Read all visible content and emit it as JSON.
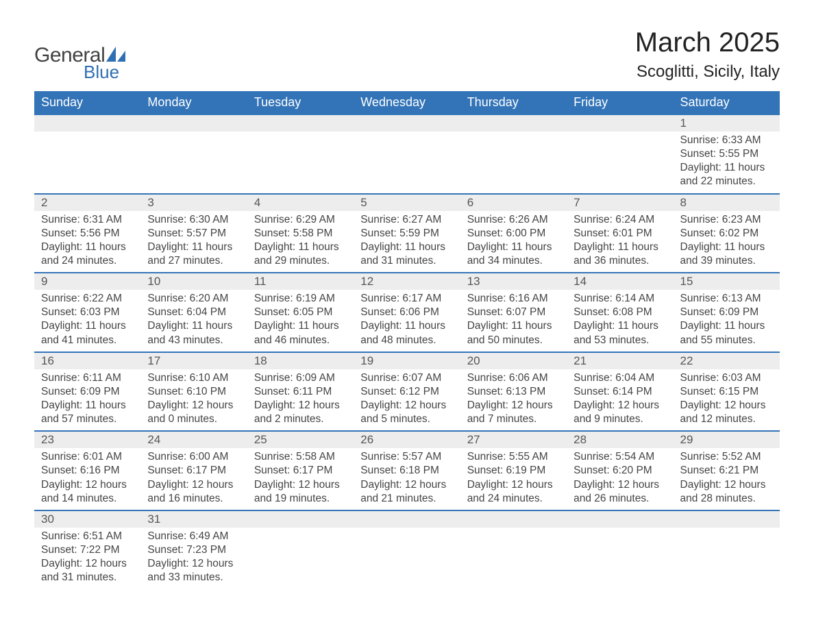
{
  "logo": {
    "word1": "General",
    "word2": "Blue",
    "shape_color": "#2f6fb3",
    "text_color_dark": "#424242"
  },
  "title": "March 2025",
  "location": "Scoglitti, Sicily, Italy",
  "weekdays": [
    "Sunday",
    "Monday",
    "Tuesday",
    "Wednesday",
    "Thursday",
    "Friday",
    "Saturday"
  ],
  "colors": {
    "header_bg": "#3374b8",
    "header_text": "#ffffff",
    "daynum_bg": "#ededed",
    "row_border": "#3374b8",
    "body_text": "#444444"
  },
  "first_weekday_index": 6,
  "days": [
    {
      "n": 1,
      "sunrise": "6:33 AM",
      "sunset": "5:55 PM",
      "daylight": "11 hours and 22 minutes."
    },
    {
      "n": 2,
      "sunrise": "6:31 AM",
      "sunset": "5:56 PM",
      "daylight": "11 hours and 24 minutes."
    },
    {
      "n": 3,
      "sunrise": "6:30 AM",
      "sunset": "5:57 PM",
      "daylight": "11 hours and 27 minutes."
    },
    {
      "n": 4,
      "sunrise": "6:29 AM",
      "sunset": "5:58 PM",
      "daylight": "11 hours and 29 minutes."
    },
    {
      "n": 5,
      "sunrise": "6:27 AM",
      "sunset": "5:59 PM",
      "daylight": "11 hours and 31 minutes."
    },
    {
      "n": 6,
      "sunrise": "6:26 AM",
      "sunset": "6:00 PM",
      "daylight": "11 hours and 34 minutes."
    },
    {
      "n": 7,
      "sunrise": "6:24 AM",
      "sunset": "6:01 PM",
      "daylight": "11 hours and 36 minutes."
    },
    {
      "n": 8,
      "sunrise": "6:23 AM",
      "sunset": "6:02 PM",
      "daylight": "11 hours and 39 minutes."
    },
    {
      "n": 9,
      "sunrise": "6:22 AM",
      "sunset": "6:03 PM",
      "daylight": "11 hours and 41 minutes."
    },
    {
      "n": 10,
      "sunrise": "6:20 AM",
      "sunset": "6:04 PM",
      "daylight": "11 hours and 43 minutes."
    },
    {
      "n": 11,
      "sunrise": "6:19 AM",
      "sunset": "6:05 PM",
      "daylight": "11 hours and 46 minutes."
    },
    {
      "n": 12,
      "sunrise": "6:17 AM",
      "sunset": "6:06 PM",
      "daylight": "11 hours and 48 minutes."
    },
    {
      "n": 13,
      "sunrise": "6:16 AM",
      "sunset": "6:07 PM",
      "daylight": "11 hours and 50 minutes."
    },
    {
      "n": 14,
      "sunrise": "6:14 AM",
      "sunset": "6:08 PM",
      "daylight": "11 hours and 53 minutes."
    },
    {
      "n": 15,
      "sunrise": "6:13 AM",
      "sunset": "6:09 PM",
      "daylight": "11 hours and 55 minutes."
    },
    {
      "n": 16,
      "sunrise": "6:11 AM",
      "sunset": "6:09 PM",
      "daylight": "11 hours and 57 minutes."
    },
    {
      "n": 17,
      "sunrise": "6:10 AM",
      "sunset": "6:10 PM",
      "daylight": "12 hours and 0 minutes."
    },
    {
      "n": 18,
      "sunrise": "6:09 AM",
      "sunset": "6:11 PM",
      "daylight": "12 hours and 2 minutes."
    },
    {
      "n": 19,
      "sunrise": "6:07 AM",
      "sunset": "6:12 PM",
      "daylight": "12 hours and 5 minutes."
    },
    {
      "n": 20,
      "sunrise": "6:06 AM",
      "sunset": "6:13 PM",
      "daylight": "12 hours and 7 minutes."
    },
    {
      "n": 21,
      "sunrise": "6:04 AM",
      "sunset": "6:14 PM",
      "daylight": "12 hours and 9 minutes."
    },
    {
      "n": 22,
      "sunrise": "6:03 AM",
      "sunset": "6:15 PM",
      "daylight": "12 hours and 12 minutes."
    },
    {
      "n": 23,
      "sunrise": "6:01 AM",
      "sunset": "6:16 PM",
      "daylight": "12 hours and 14 minutes."
    },
    {
      "n": 24,
      "sunrise": "6:00 AM",
      "sunset": "6:17 PM",
      "daylight": "12 hours and 16 minutes."
    },
    {
      "n": 25,
      "sunrise": "5:58 AM",
      "sunset": "6:17 PM",
      "daylight": "12 hours and 19 minutes."
    },
    {
      "n": 26,
      "sunrise": "5:57 AM",
      "sunset": "6:18 PM",
      "daylight": "12 hours and 21 minutes."
    },
    {
      "n": 27,
      "sunrise": "5:55 AM",
      "sunset": "6:19 PM",
      "daylight": "12 hours and 24 minutes."
    },
    {
      "n": 28,
      "sunrise": "5:54 AM",
      "sunset": "6:20 PM",
      "daylight": "12 hours and 26 minutes."
    },
    {
      "n": 29,
      "sunrise": "5:52 AM",
      "sunset": "6:21 PM",
      "daylight": "12 hours and 28 minutes."
    },
    {
      "n": 30,
      "sunrise": "6:51 AM",
      "sunset": "7:22 PM",
      "daylight": "12 hours and 31 minutes."
    },
    {
      "n": 31,
      "sunrise": "6:49 AM",
      "sunset": "7:23 PM",
      "daylight": "12 hours and 33 minutes."
    }
  ],
  "labels": {
    "sunrise": "Sunrise:",
    "sunset": "Sunset:",
    "daylight": "Daylight:"
  }
}
